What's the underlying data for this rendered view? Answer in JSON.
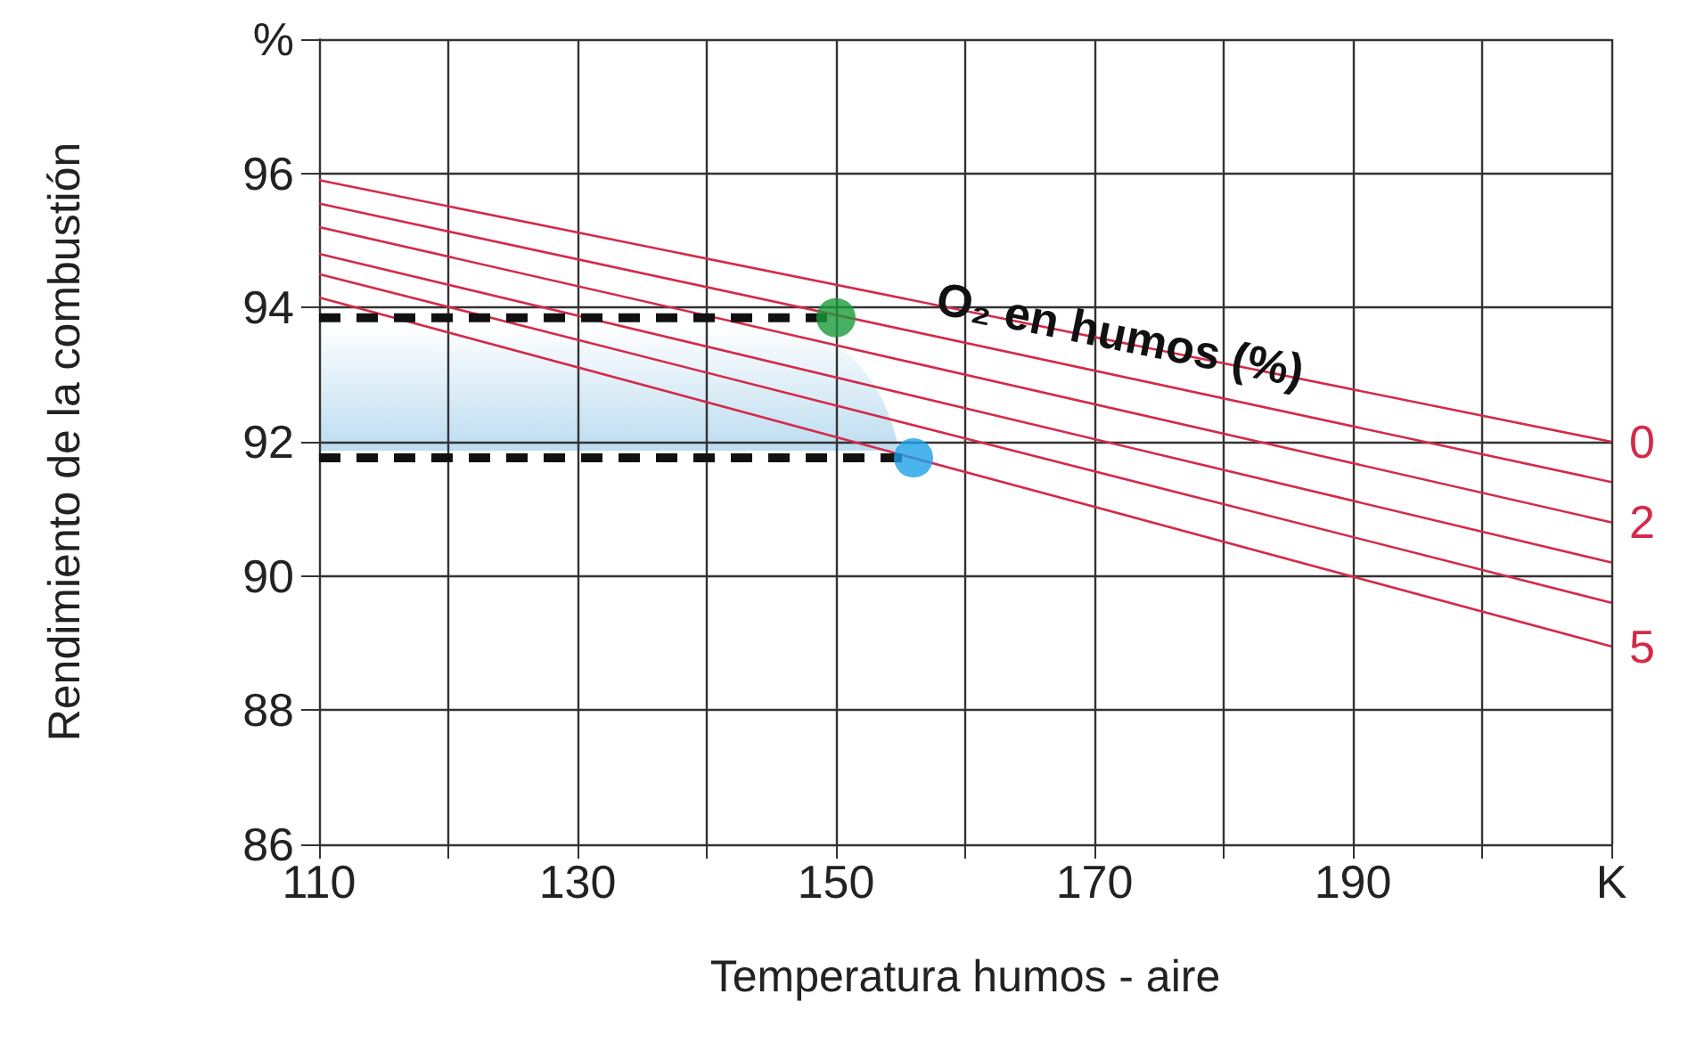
{
  "chart_data": {
    "type": "line",
    "xlabel": "Temperatura humos - aire",
    "ylabel": "Rendimiento de la combustión",
    "annotations": [
      "O₂ en humos (%)"
    ],
    "xlim": [
      110,
      210
    ],
    "ylim": [
      86,
      98
    ],
    "xticks": [
      110,
      {
        "value": 120,
        "label": null
      },
      130,
      {
        "value": 140,
        "label": null
      },
      150,
      {
        "value": 160,
        "label": null
      },
      170,
      {
        "value": 180,
        "label": null
      },
      190,
      {
        "value": 200,
        "label": null
      },
      {
        "value": 210,
        "label": "K"
      }
    ],
    "yticks": [
      86,
      88,
      90,
      92,
      94,
      96,
      {
        "value": 98,
        "label": "%"
      }
    ],
    "grid": true,
    "marker": "none",
    "series": [
      {
        "name": "0",
        "color": "#d42a4a",
        "x": [
          110,
          210
        ],
        "values": [
          95.9,
          92.0
        ]
      },
      {
        "color": "#d42a4a",
        "x": [
          110,
          210
        ],
        "values": [
          95.55,
          91.4
        ]
      },
      {
        "name": "2",
        "color": "#d42a4a",
        "x": [
          110,
          210
        ],
        "values": [
          95.2,
          90.8
        ]
      },
      {
        "color": "#d42a4a",
        "x": [
          110,
          210
        ],
        "values": [
          94.8,
          90.2
        ]
      },
      {
        "color": "#d42a4a",
        "x": [
          110,
          210
        ],
        "values": [
          94.5,
          89.6
        ]
      },
      {
        "name": "5",
        "color": "#d42a4a",
        "x": [
          110,
          210
        ],
        "values": [
          94.15,
          88.95
        ]
      },
      {
        "color": "#111111",
        "line_style": "dashed",
        "x": [
          110,
          150
        ],
        "values": [
          93.85,
          93.85
        ]
      },
      {
        "color": "#111111",
        "line_style": "dashed",
        "x": [
          110,
          156
        ],
        "values": [
          91.76,
          91.76
        ]
      },
      {
        "type": "scatter",
        "marker": "circle",
        "color": "#1a9a3a",
        "x": [
          150
        ],
        "values": [
          93.85
        ]
      },
      {
        "type": "scatter",
        "marker": "circle",
        "color": "#1ea0e6",
        "x": [
          156
        ],
        "values": [
          91.76
        ]
      }
    ]
  }
}
